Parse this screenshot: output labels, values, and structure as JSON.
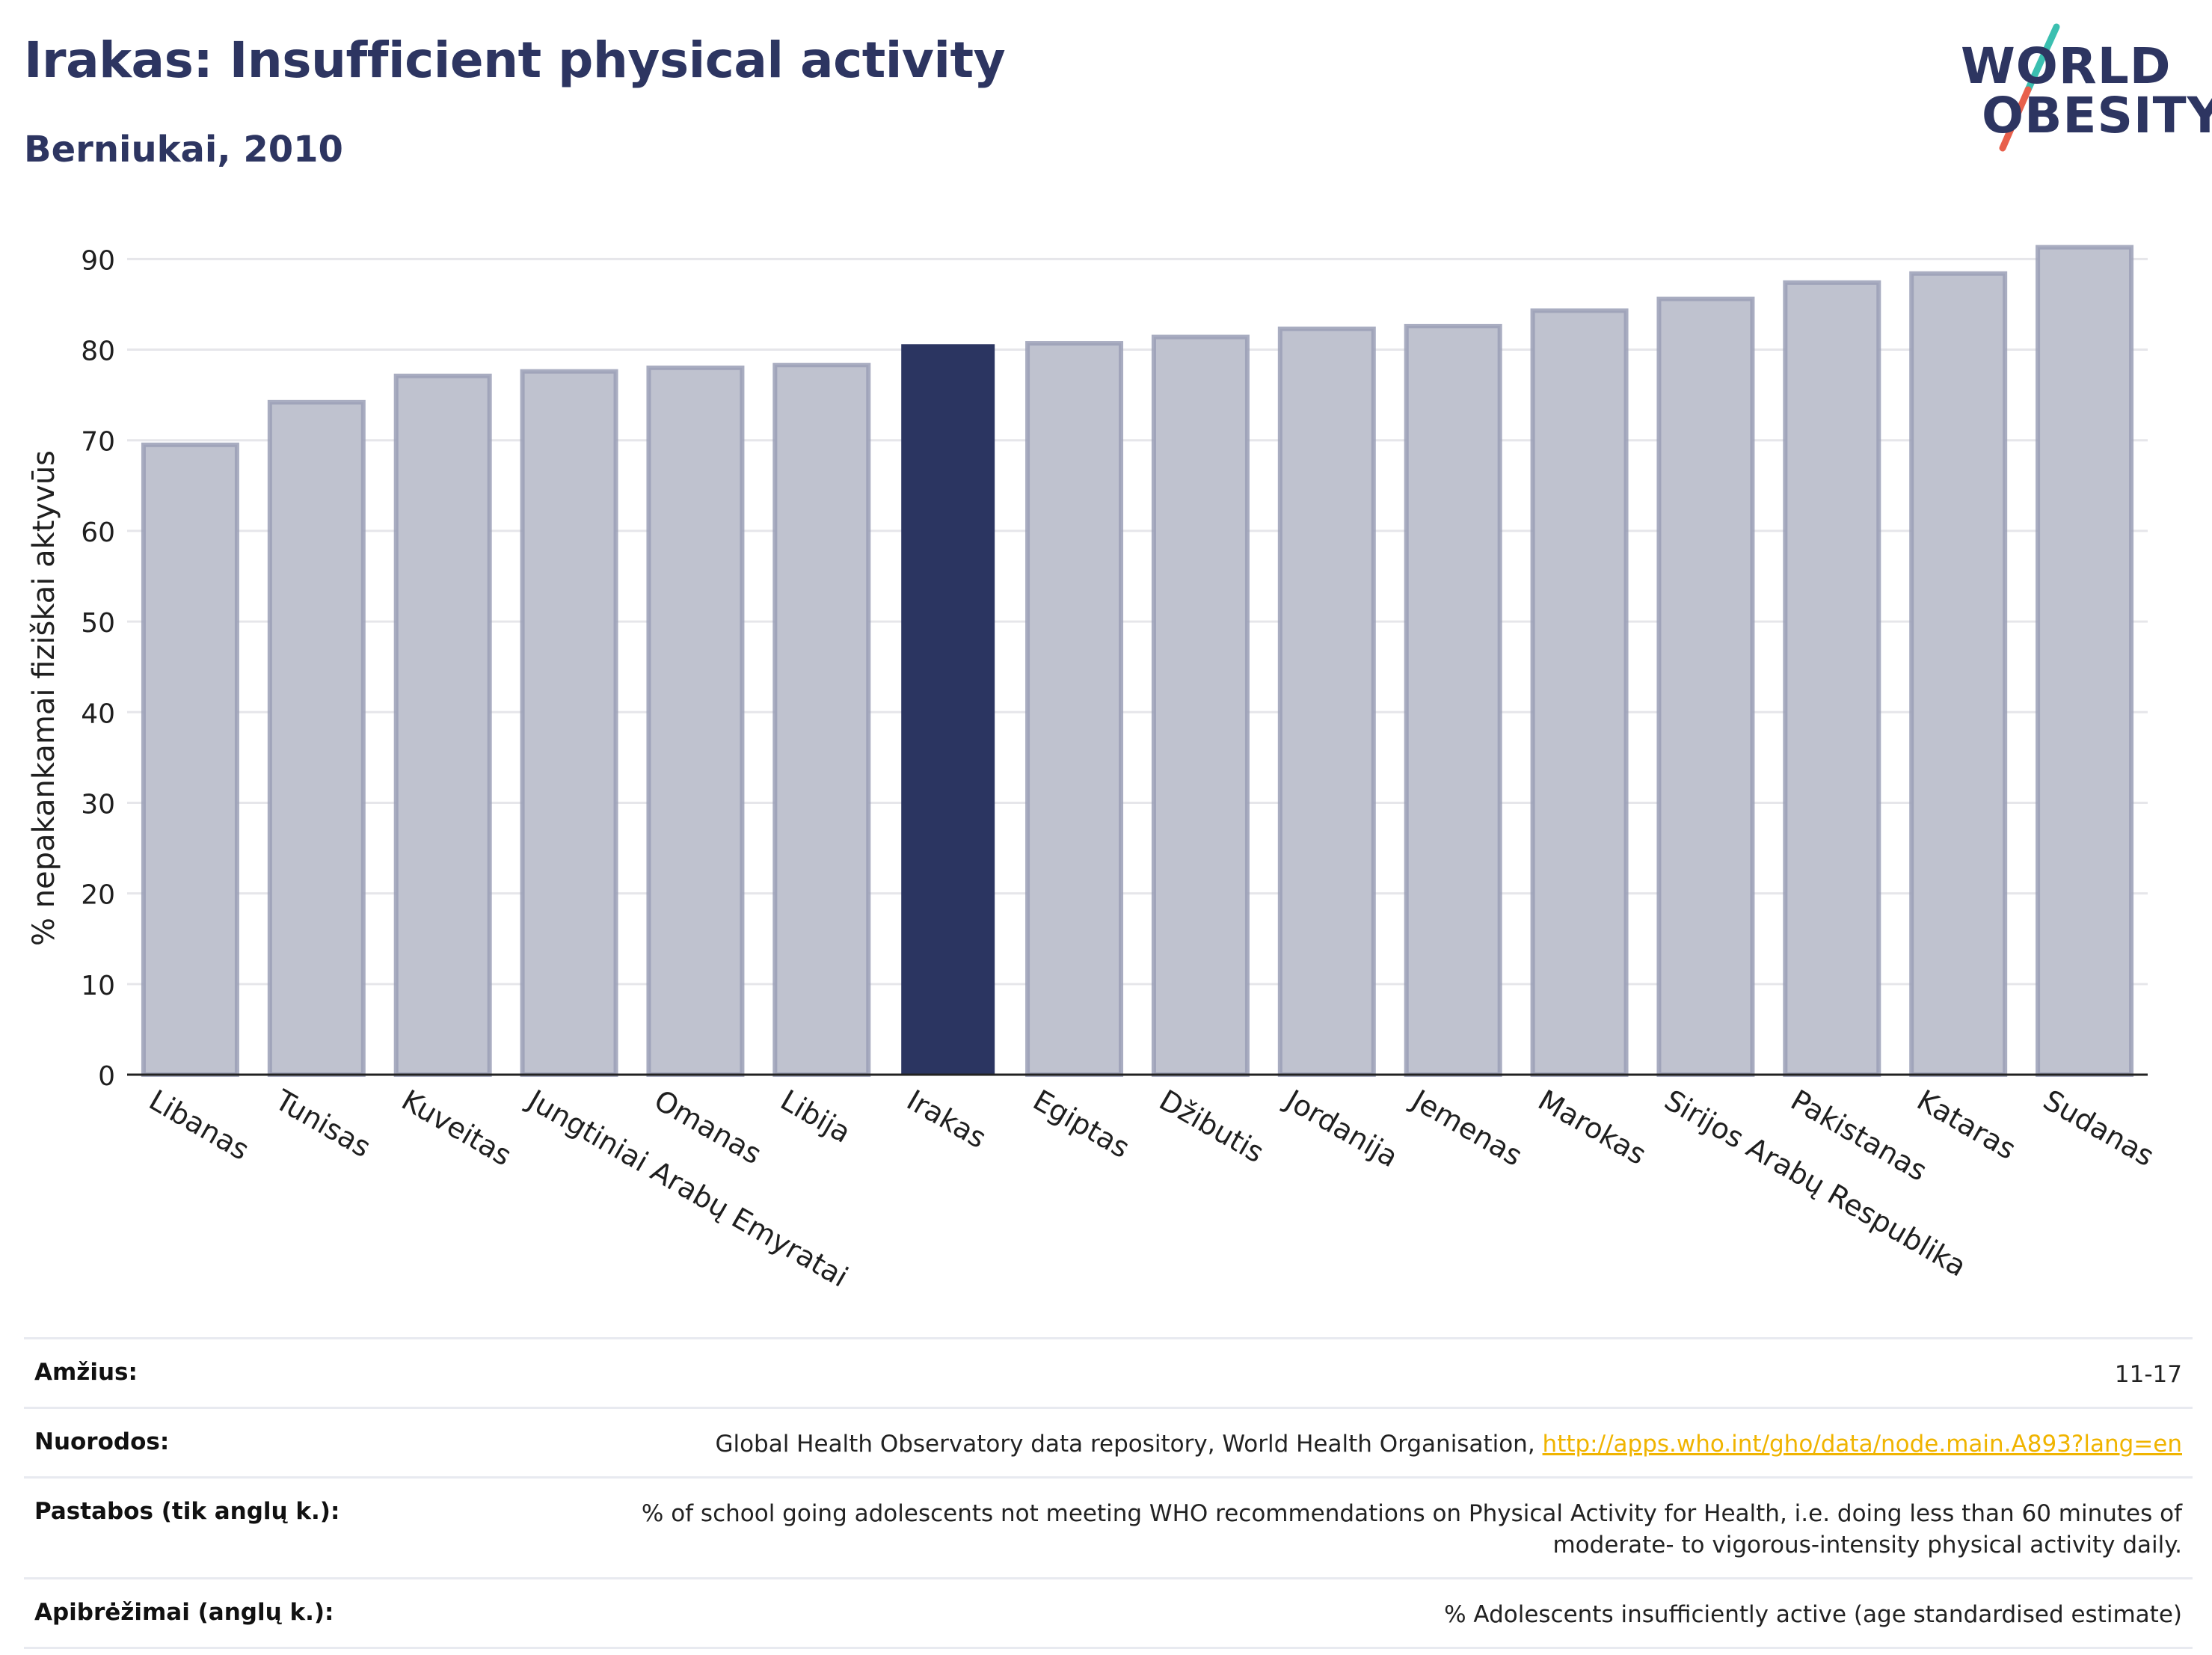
{
  "header": {
    "title": "Irakas: Insufficient physical activity",
    "subtitle": "Berniukai, 2010"
  },
  "logo": {
    "line1": "WORLD",
    "line2": "OBESITY",
    "colors": {
      "text": "#2d3561",
      "slash_top": "#3bbfb0",
      "slash_bottom": "#e8604c"
    }
  },
  "colors": {
    "highlight": "#2b3561",
    "bar": "#bfc2cf",
    "bar_border": "#9a9fb6",
    "grid": "#e6e6ea",
    "link": "#f0b400"
  },
  "chart_data": {
    "type": "bar",
    "ylabel": "% nepakankamai fiziškai aktyvūs",
    "xlabel": "",
    "ylim": [
      0,
      93
    ],
    "yticks": [
      0,
      10,
      20,
      30,
      40,
      50,
      60,
      70,
      80,
      90
    ],
    "grid": true,
    "highlight": "Irakas",
    "categories": [
      "Libanas",
      "Tunisas",
      "Kuveitas",
      "Jungtiniai Arabų Emyratai",
      "Omanas",
      "Libija",
      "Irakas",
      "Egiptas",
      "Džibutis",
      "Jordanija",
      "Jemenas",
      "Marokas",
      "Sirijos Arabų Respublika",
      "Pakistanas",
      "Kataras",
      "Sudanas"
    ],
    "values": [
      69.5,
      74.2,
      77.1,
      77.6,
      78.0,
      78.3,
      80.6,
      80.7,
      81.4,
      82.3,
      82.6,
      84.3,
      85.6,
      87.4,
      88.4,
      91.3
    ]
  },
  "meta": [
    {
      "label": "Amžius:",
      "value": "11-17"
    },
    {
      "label": "Nuorodos:",
      "value": "Global Health Observatory data repository, World Health Organisation, ",
      "link": "http://apps.who.int/gho/data/node.main.A893?lang=en"
    },
    {
      "label": "Pastabos (tik anglų k.):",
      "value": "% of school going adolescents not meeting WHO recommendations on Physical Activity for Health, i.e. doing less than 60 minutes of",
      "value2": "moderate- to vigorous-intensity physical activity daily."
    },
    {
      "label": "Apibrėžimai (anglų k.):",
      "value": "% Adolescents insufficiently active (age standardised estimate)"
    }
  ]
}
